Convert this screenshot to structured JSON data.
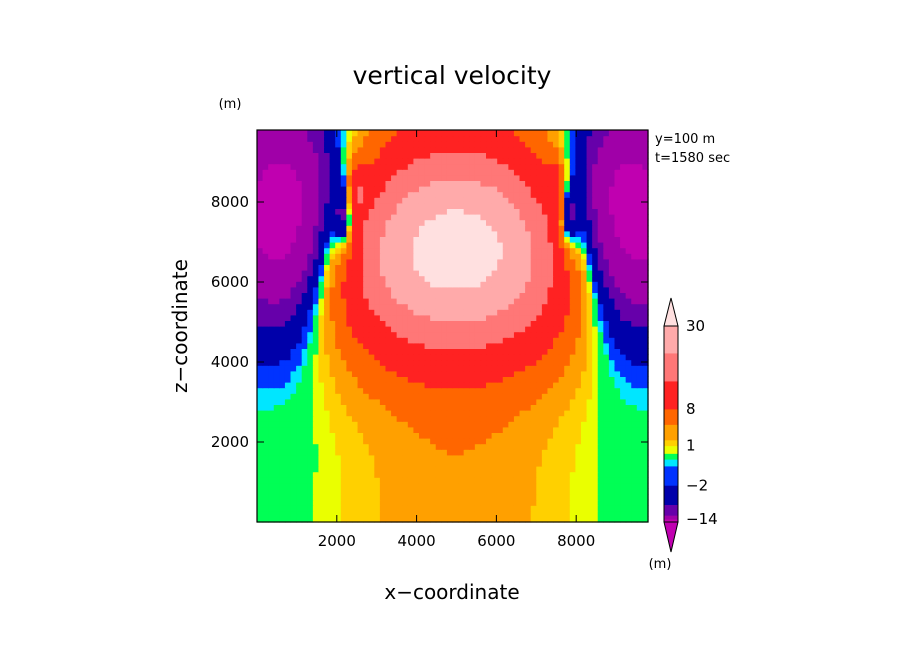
{
  "chart_data": {
    "type": "heatmap",
    "title": "vertical velocity",
    "xlabel": "x−coordinate",
    "ylabel": "z−coordinate",
    "y_unit": "(m)",
    "xlim": [
      0,
      9800
    ],
    "ylim": [
      0,
      9800
    ],
    "xticks": [
      2000,
      4000,
      6000,
      8000
    ],
    "yticks": [
      2000,
      4000,
      6000,
      8000
    ],
    "xtick_labels": [
      "2000",
      "4000",
      "6000",
      "8000"
    ],
    "ytick_labels": [
      "2000",
      "4000",
      "6000",
      "8000"
    ],
    "annotations": [
      "y=100 m",
      "t=1580 sec"
    ],
    "colorbar": {
      "unit": "(m)",
      "tick_labels": [
        "30",
        "8",
        "1",
        "−2",
        "−14"
      ],
      "label_at_level": [
        30,
        8,
        1,
        -2,
        -14
      ],
      "bounds": [
        -20,
        -14,
        -8,
        -5,
        -2,
        -1,
        -0.5,
        0.5,
        1,
        2,
        4,
        8,
        15,
        22,
        30
      ],
      "colors": [
        "#c000b0",
        "#a000a8",
        "#6600aa",
        "#0000aa",
        "#0033ff",
        "#00e6ff",
        "#00ff55",
        "#eaff00",
        "#ffd000",
        "#ffa000",
        "#ff6600",
        "#ff2222",
        "#ff7777",
        "#ffaaaa",
        "#ffe0e0"
      ]
    },
    "field_description": "Rising updraft core centred at x=5000 m peaking near z=7000 m with ~30 m/s; compensating downdrafts (negative values to about -20 m/s) on both flanks near x=1000 and x=9000 above z=2000 m."
  }
}
